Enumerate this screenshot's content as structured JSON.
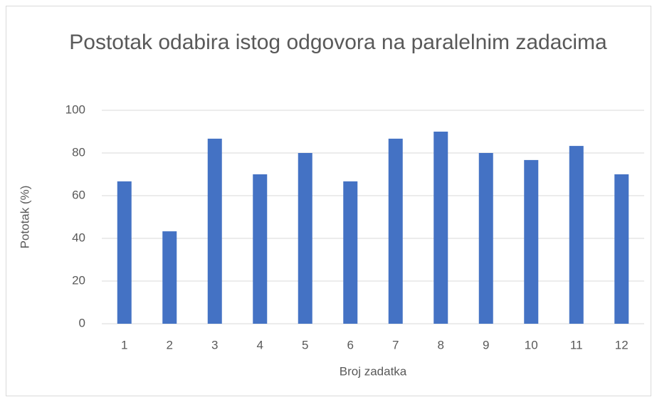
{
  "chart_data": {
    "type": "bar",
    "title": "Postotak odabira istog odgovora na paralelnim zadacima",
    "x_label": "Broj zadatka",
    "y_label": "Pototak (%)",
    "categories": [
      "1",
      "2",
      "3",
      "4",
      "5",
      "6",
      "7",
      "8",
      "9",
      "10",
      "11",
      "12"
    ],
    "values": [
      66.7,
      43.3,
      86.7,
      70,
      80,
      66.7,
      86.7,
      90,
      80,
      76.7,
      83.3,
      70
    ],
    "color": "#4472c4",
    "ylim": [
      0,
      100
    ],
    "yticks": [
      0,
      20,
      40,
      60,
      80,
      100
    ],
    "grid": true
  }
}
